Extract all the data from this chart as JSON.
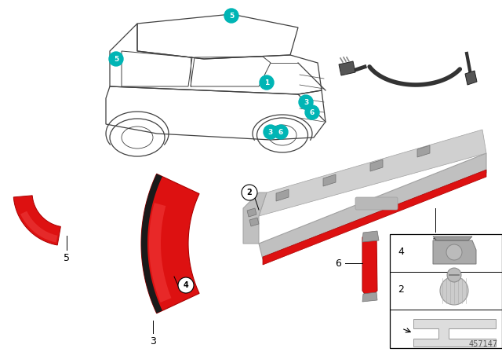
{
  "background_color": "#ffffff",
  "teal_color": "#00b5b5",
  "red_color": "#dd1111",
  "red_dark": "#aa0000",
  "gray_light": "#c0c0c0",
  "gray_mid": "#a0a0a0",
  "gray_dark": "#707070",
  "car_line": "#404040",
  "diagram_number": "457147"
}
